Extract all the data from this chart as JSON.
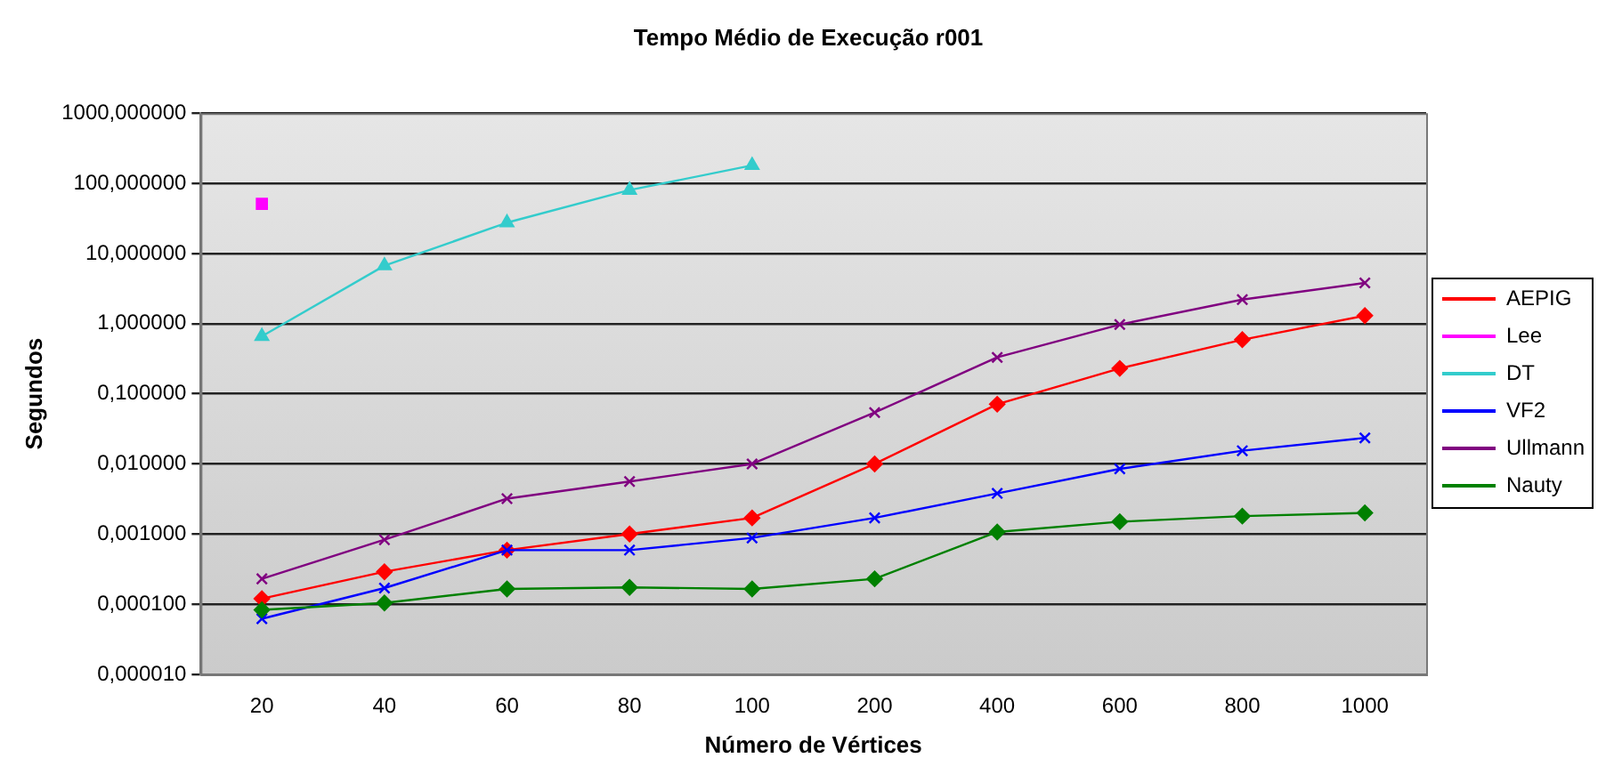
{
  "chart_data": {
    "type": "line",
    "title": "Tempo Médio de Execução r001",
    "xlabel": "Número de Vértices",
    "ylabel": "Segundos",
    "categories": [
      "20",
      "40",
      "60",
      "80",
      "100",
      "200",
      "400",
      "600",
      "800",
      "1000"
    ],
    "log": "y",
    "ylim": [
      1e-05,
      1000
    ],
    "yticks": [
      {
        "value": 1e-05,
        "label": "0,000010"
      },
      {
        "value": 0.0001,
        "label": "0,000100"
      },
      {
        "value": 0.001,
        "label": "0,001000"
      },
      {
        "value": 0.01,
        "label": "0,010000"
      },
      {
        "value": 0.1,
        "label": "0,100000"
      },
      {
        "value": 1,
        "label": "1,000000"
      },
      {
        "value": 10,
        "label": "10,000000"
      },
      {
        "value": 100,
        "label": "100,000000"
      },
      {
        "value": 1000,
        "label": "1000,000000"
      }
    ],
    "grid": "y",
    "legend": "right",
    "line_style": "solid",
    "series": [
      {
        "name": "AEPIG",
        "color": "#ff0000",
        "marker": "diamond",
        "values": [
          0.00012,
          0.00029,
          0.00059,
          0.001,
          0.0017,
          0.01,
          0.071,
          0.23,
          0.59,
          1.3
        ]
      },
      {
        "name": "Lee",
        "color": "#ff00ff",
        "marker": "square",
        "values": [
          51,
          null,
          null,
          null,
          null,
          null,
          null,
          null,
          null,
          null
        ]
      },
      {
        "name": "DT",
        "color": "#33cccc",
        "marker": "triangle",
        "values": [
          0.66,
          6.7,
          27.5,
          80,
          180,
          null,
          null,
          null,
          null,
          null
        ]
      },
      {
        "name": "VF2",
        "color": "#0000ff",
        "marker": "cross",
        "values": [
          6.2e-05,
          0.00017,
          0.00059,
          0.00059,
          0.00088,
          0.0017,
          0.0038,
          0.0085,
          0.0154,
          0.0235
        ]
      },
      {
        "name": "Ullmann",
        "color": "#800080",
        "marker": "cross",
        "values": [
          0.00023,
          0.00083,
          0.0032,
          0.0056,
          0.01,
          0.054,
          0.33,
          0.97,
          2.2,
          3.8
        ]
      },
      {
        "name": "Nauty",
        "color": "#008000",
        "marker": "diamond",
        "values": [
          8.3e-05,
          0.000104,
          0.000165,
          0.000174,
          0.000165,
          0.00023,
          0.00107,
          0.0015,
          0.0018,
          0.002
        ]
      }
    ]
  }
}
